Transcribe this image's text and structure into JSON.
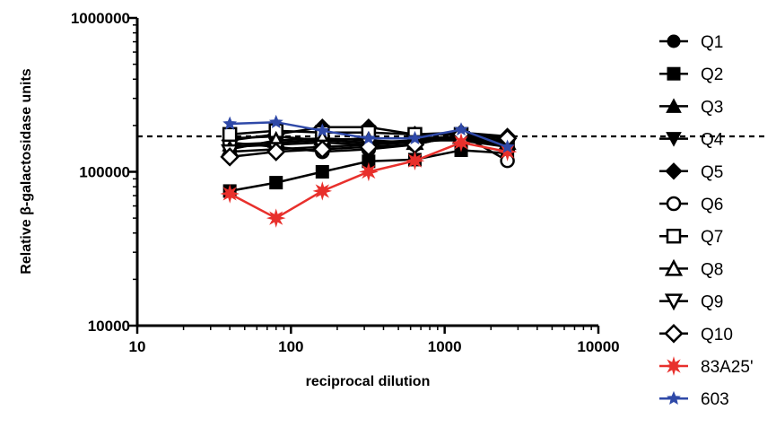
{
  "chart_data": {
    "type": "line",
    "xscale": "log",
    "yscale": "log",
    "xlim": [
      10,
      10000
    ],
    "ylim": [
      10000,
      1000000
    ],
    "xlabel": "reciprocal dilution",
    "ylabel": "Relative β-galactosidase units",
    "xticks": [
      "10",
      "100",
      "1000",
      "10000"
    ],
    "yticks": [
      "10000",
      "100000",
      "1000000"
    ],
    "reference_line": {
      "y": 170000,
      "style": "dashed"
    },
    "legend_position": "right",
    "x": [
      40,
      80,
      160,
      320,
      640,
      1280,
      2560
    ],
    "series": [
      {
        "name": "Q1",
        "marker": "filled-circle",
        "color": "#000000",
        "values": [
          165000,
          170000,
          160000,
          155000,
          160000,
          170000,
          160000
        ]
      },
      {
        "name": "Q2",
        "marker": "filled-square",
        "color": "#000000",
        "values": [
          75000,
          85000,
          100000,
          117000,
          120000,
          138000,
          132000
        ]
      },
      {
        "name": "Q3",
        "marker": "filled-triangle-up",
        "color": "#000000",
        "values": [
          150000,
          155000,
          160000,
          165000,
          165000,
          170000,
          150000
        ]
      },
      {
        "name": "Q4",
        "marker": "filled-triangle-down",
        "color": "#000000",
        "values": [
          145000,
          150000,
          155000,
          150000,
          160000,
          160000,
          145000
        ]
      },
      {
        "name": "Q5",
        "marker": "filled-diamond",
        "color": "#000000",
        "values": [
          160000,
          175000,
          195000,
          195000,
          175000,
          180000,
          170000
        ]
      },
      {
        "name": "Q6",
        "marker": "open-circle",
        "color": "#000000",
        "values": [
          155000,
          145000,
          135000,
          140000,
          150000,
          175000,
          118000
        ]
      },
      {
        "name": "Q7",
        "marker": "open-square",
        "color": "#000000",
        "values": [
          175000,
          185000,
          180000,
          180000,
          175000,
          175000,
          150000
        ]
      },
      {
        "name": "Q8",
        "marker": "open-triangle-up",
        "color": "#000000",
        "values": [
          140000,
          160000,
          165000,
          160000,
          155000,
          170000,
          155000
        ]
      },
      {
        "name": "Q9",
        "marker": "open-triangle-down",
        "color": "#000000",
        "values": [
          135000,
          140000,
          145000,
          150000,
          155000,
          165000,
          148000
        ]
      },
      {
        "name": "Q10",
        "marker": "open-diamond",
        "color": "#000000",
        "values": [
          125000,
          135000,
          140000,
          145000,
          150000,
          175000,
          165000
        ]
      },
      {
        "name": "83A25'",
        "marker": "red-star",
        "color": "#e8302c",
        "values": [
          72000,
          50000,
          75000,
          100000,
          118000,
          155000,
          135000
        ]
      },
      {
        "name": "603",
        "marker": "blue-star",
        "color": "#2f49a8",
        "values": [
          205000,
          210000,
          185000,
          165000,
          165000,
          188000,
          145000
        ]
      }
    ]
  }
}
